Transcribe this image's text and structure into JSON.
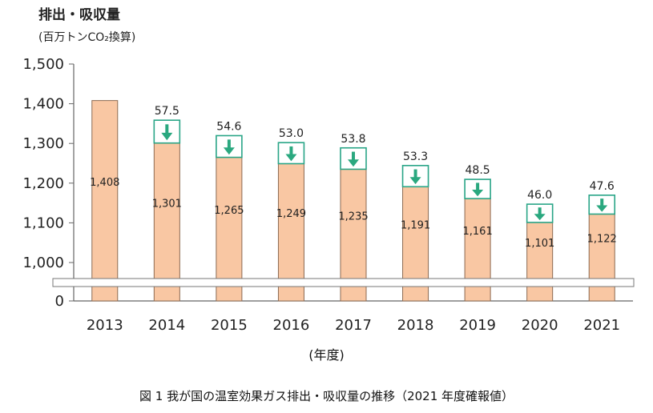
{
  "chart_data": {
    "type": "bar",
    "title": "図 1  我が国の温室効果ガス排出・吸収量の推移（2021 年度確報値）",
    "ylabel": "排出・吸収量",
    "yunit": "(百万トンCO₂換算)",
    "xlabel": "(年度)",
    "ylim": [
      1000,
      1500
    ],
    "y_axis_break": true,
    "yticks": [
      "0",
      "1,000",
      "1,100",
      "1,200",
      "1,300",
      "1,400",
      "1,500"
    ],
    "categories": [
      "2013",
      "2014",
      "2015",
      "2016",
      "2017",
      "2018",
      "2019",
      "2020",
      "2021"
    ],
    "series": [
      {
        "name": "排出・吸収量",
        "values": [
          1408,
          1301,
          1265,
          1249,
          1235,
          1191,
          1161,
          1101,
          1122
        ],
        "labels": [
          "1,408",
          "1,301",
          "1,265",
          "1,249",
          "1,235",
          "1,191",
          "1,161",
          "1,101",
          "1,122"
        ]
      },
      {
        "name": "吸収量",
        "values": [
          null,
          57.5,
          54.6,
          53.0,
          53.8,
          53.3,
          48.5,
          46.0,
          47.6
        ],
        "labels": [
          "",
          "57.5",
          "54.6",
          "53.0",
          "53.8",
          "53.3",
          "48.5",
          "46.0",
          "47.6"
        ]
      }
    ],
    "colors": {
      "bar_fill": "#f9c7a3",
      "bar_stroke": "#8c6a52",
      "absorb_stroke": "#29a587",
      "arrow": "#2aa87f"
    }
  }
}
